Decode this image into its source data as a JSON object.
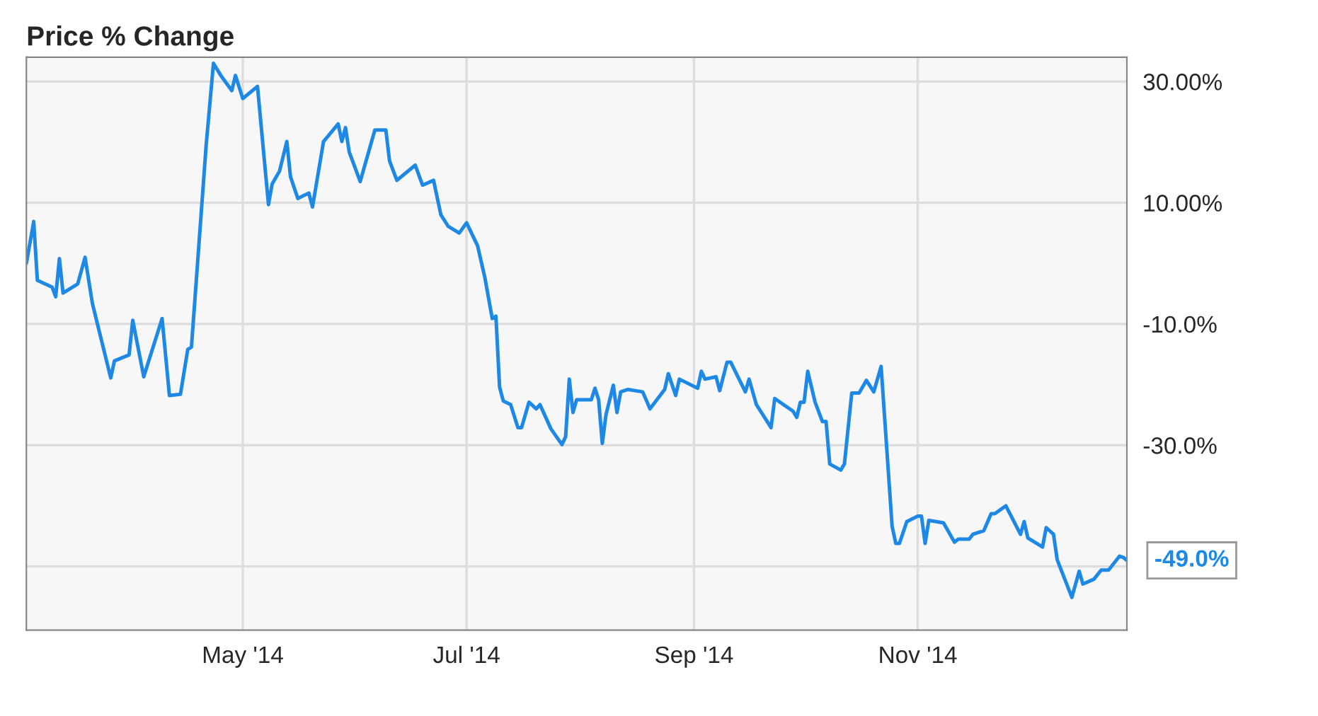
{
  "chart_data": {
    "type": "line",
    "title": "Price % Change",
    "series": [
      {
        "color": "#1e88e5",
        "x": [
          "2014-03-03",
          "2014-03-05",
          "2014-03-06",
          "2014-03-10",
          "2014-03-11",
          "2014-03-12",
          "2014-03-13",
          "2014-03-17",
          "2014-03-19",
          "2014-03-21",
          "2014-03-26",
          "2014-03-27",
          "2014-03-31",
          "2014-04-01",
          "2014-04-04",
          "2014-04-09",
          "2014-04-11",
          "2014-04-14",
          "2014-04-16",
          "2014-04-17",
          "2014-04-21",
          "2014-04-23",
          "2014-04-25",
          "2014-04-28",
          "2014-04-29",
          "2014-05-01",
          "2014-05-05",
          "2014-05-08",
          "2014-05-09",
          "2014-05-11",
          "2014-05-13",
          "2014-05-14",
          "2014-05-16",
          "2014-05-19",
          "2014-05-20",
          "2014-05-23",
          "2014-05-27",
          "2014-05-28",
          "2014-05-29",
          "2014-05-30",
          "2014-06-02",
          "2014-06-06",
          "2014-06-09",
          "2014-06-10",
          "2014-06-12",
          "2014-06-17",
          "2014-06-19",
          "2014-06-22",
          "2014-06-24",
          "2014-06-26",
          "2014-06-29",
          "2014-07-01",
          "2014-07-04",
          "2014-07-06",
          "2014-07-08",
          "2014-07-09",
          "2014-07-10",
          "2014-07-11",
          "2014-07-13",
          "2014-07-15",
          "2014-07-16",
          "2014-07-18",
          "2014-07-20",
          "2014-07-21",
          "2014-07-24",
          "2014-07-27",
          "2014-07-28",
          "2014-07-29",
          "2014-07-30",
          "2014-07-31",
          "2014-08-04",
          "2014-08-05",
          "2014-08-06",
          "2014-08-07",
          "2014-08-08",
          "2014-08-10",
          "2014-08-11",
          "2014-08-12",
          "2014-08-14",
          "2014-08-18",
          "2014-08-20",
          "2014-08-24",
          "2014-08-25",
          "2014-08-27",
          "2014-08-28",
          "2014-09-02",
          "2014-09-03",
          "2014-09-04",
          "2014-09-07",
          "2014-09-08",
          "2014-09-10",
          "2014-09-11",
          "2014-09-15",
          "2014-09-16",
          "2014-09-18",
          "2014-09-22",
          "2014-09-23",
          "2014-09-28",
          "2014-09-29",
          "2014-09-30",
          "2014-10-01",
          "2014-10-02",
          "2014-10-04",
          "2014-10-06",
          "2014-10-07",
          "2014-10-08",
          "2014-10-11",
          "2014-10-12",
          "2014-10-14",
          "2014-10-16",
          "2014-10-18",
          "2014-10-20",
          "2014-10-22",
          "2014-10-25",
          "2014-10-26",
          "2014-10-27",
          "2014-10-29",
          "2014-11-01",
          "2014-11-02",
          "2014-11-03",
          "2014-11-04",
          "2014-11-08",
          "2014-11-11",
          "2014-11-12",
          "2014-11-15",
          "2014-11-16",
          "2014-11-19",
          "2014-11-21",
          "2014-11-22",
          "2014-11-25",
          "2014-11-29",
          "2014-11-30",
          "2014-12-01",
          "2014-12-05",
          "2014-12-06",
          "2014-12-08",
          "2014-12-09",
          "2014-12-13",
          "2014-12-15",
          "2014-12-16",
          "2014-12-19",
          "2014-12-21",
          "2014-12-23",
          "2014-12-26",
          "2014-12-27",
          "2014-12-28"
        ],
        "values": [
          0.0,
          6.9,
          -2.8,
          -3.9,
          -5.5,
          0.8,
          -4.9,
          -3.4,
          1.0,
          -6.6,
          -18.9,
          -16.1,
          -15.1,
          -9.4,
          -18.7,
          -9.1,
          -21.8,
          -21.6,
          -14.2,
          -13.8,
          19.4,
          33.0,
          31.0,
          28.5,
          31.0,
          27.2,
          29.2,
          9.7,
          13.1,
          15.2,
          20.1,
          14.3,
          10.7,
          11.6,
          9.3,
          20.1,
          23.0,
          20.1,
          22.4,
          18.4,
          13.5,
          22.0,
          22.0,
          16.9,
          13.7,
          16.2,
          12.9,
          13.7,
          8.0,
          6.1,
          5.0,
          6.7,
          2.9,
          -2.4,
          -9.1,
          -8.7,
          -20.4,
          -22.7,
          -23.3,
          -27.1,
          -27.1,
          -22.9,
          -24.0,
          -23.3,
          -27.3,
          -29.9,
          -28.6,
          -19.1,
          -24.6,
          -22.5,
          -22.5,
          -20.6,
          -22.5,
          -29.7,
          -25.0,
          -20.1,
          -24.6,
          -21.2,
          -20.8,
          -21.2,
          -24.0,
          -20.8,
          -18.2,
          -21.8,
          -19.1,
          -20.6,
          -17.8,
          -19.1,
          -18.7,
          -21.0,
          -16.3,
          -16.3,
          -21.2,
          -19.1,
          -23.3,
          -27.1,
          -22.3,
          -24.4,
          -25.4,
          -22.9,
          -22.9,
          -17.8,
          -22.9,
          -26.1,
          -26.1,
          -33.1,
          -34.1,
          -33.1,
          -21.4,
          -21.4,
          -19.3,
          -21.2,
          -17.0,
          -43.4,
          -46.2,
          -46.2,
          -42.6,
          -41.7,
          -41.7,
          -46.2,
          -42.4,
          -42.8,
          -46.0,
          -45.5,
          -45.5,
          -44.7,
          -44.1,
          -41.3,
          -41.3,
          -40.0,
          -44.7,
          -42.6,
          -45.3,
          -46.8,
          -43.6,
          -44.7,
          -48.9,
          -55.1,
          -50.8,
          -52.9,
          -52.1,
          -50.6,
          -50.6,
          -48.3,
          -48.5,
          -49.0
        ]
      }
    ],
    "xlim": [
      "2014-03-03",
      "2014-12-28"
    ],
    "xticks": [
      {
        "value": "2014-05-01",
        "label": "May '14"
      },
      {
        "value": "2014-07-01",
        "label": "Jul '14"
      },
      {
        "value": "2014-09-01",
        "label": "Sep '14"
      },
      {
        "value": "2014-11-01",
        "label": "Nov '14"
      }
    ],
    "ylim": [
      -60.5,
      34
    ],
    "yticks": [
      {
        "value": 30,
        "label": "30.00%"
      },
      {
        "value": 10,
        "label": "10.00%"
      },
      {
        "value": -10,
        "label": "-10.0%"
      },
      {
        "value": -30,
        "label": "-30.0%"
      },
      {
        "value": -50,
        "label": null
      }
    ],
    "annotations": [
      {
        "text": "-49.0%",
        "x": "2014-12-28",
        "y": -49.0
      }
    ],
    "grid": true,
    "legend": false
  }
}
